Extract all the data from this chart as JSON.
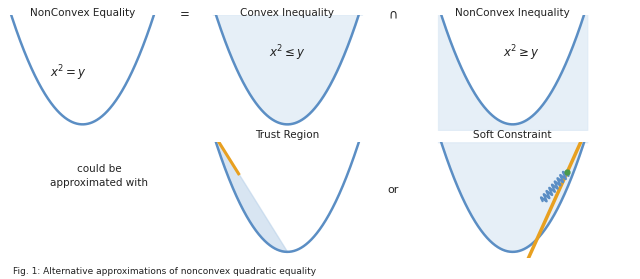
{
  "bg_color": "#ffffff",
  "parabola_color": "#5b8ec4",
  "parabola_lw": 1.8,
  "fill_color": "#dce9f5",
  "fill_alpha": 0.7,
  "text_color": "#222222",
  "orange_color": "#e8a020",
  "green_color": "#4a9a4a",
  "spring_color": "#5b8ec4",
  "trust_fill_color": "#b8d0e8",
  "trust_fill_alpha": 0.55,
  "caption": "Fig. 1: Alternative approximations of nonconvex quadratic equality",
  "label_nonconvex_eq": "NonConvex Equality",
  "label_equals": "=",
  "label_convex_ineq": "Convex Inequality",
  "label_intersect": "∩",
  "label_nonconvex_ineq": "NonConvex Inequality",
  "label_trust": "Trust Region",
  "label_soft": "Soft Constraint",
  "label_approx": "could be\napproximated with",
  "label_or": "or"
}
